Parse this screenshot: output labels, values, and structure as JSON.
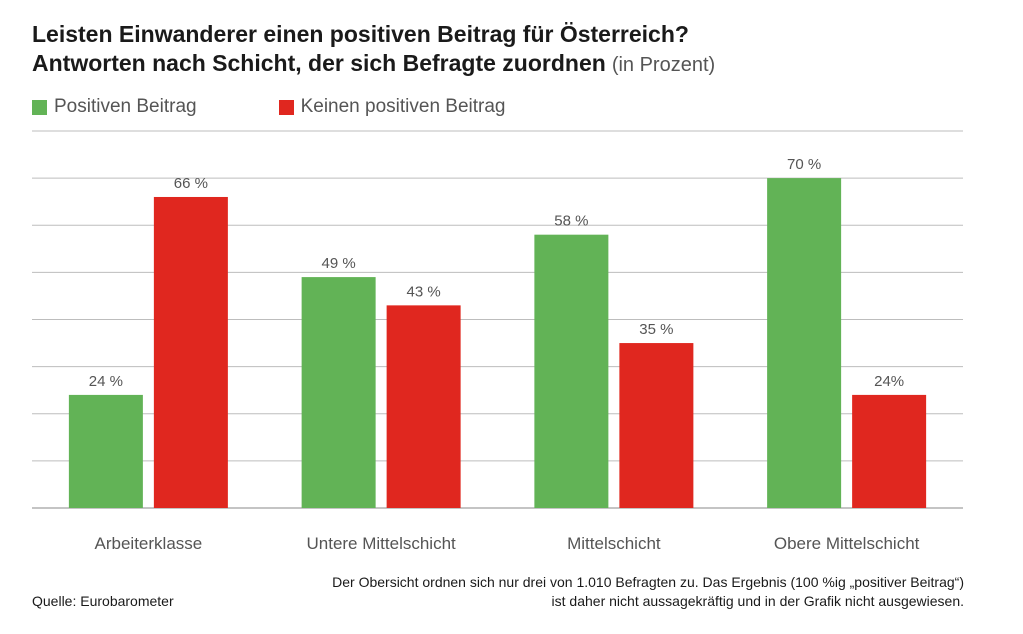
{
  "title": {
    "line1": "Leisten Einwanderer einen positiven Beitrag für Österreich?",
    "line2": "Antworten nach Schicht, der sich Befragte zuordnen",
    "unit": "(in Prozent)"
  },
  "colors": {
    "positive": "#62b356",
    "negative": "#e0271f",
    "grid": "#bdbdbd",
    "label": "#555555"
  },
  "chart_data": {
    "type": "bar",
    "categories": [
      "Arbeiterklasse",
      "Untere Mittelschicht",
      "Mittelschicht",
      "Obere Mittelschicht"
    ],
    "series": [
      {
        "name": "Positiven Beitrag",
        "values": [
          24,
          49,
          58,
          70
        ],
        "labels": [
          "24 %",
          "49 %",
          "58 %",
          "70 %"
        ]
      },
      {
        "name": "Keinen positiven Beitrag",
        "values": [
          66,
          43,
          35,
          24
        ],
        "labels": [
          "66 %",
          "43 %",
          "35 %",
          "24%"
        ]
      }
    ],
    "ylim": [
      0,
      80
    ],
    "ytick_step": 10,
    "grid": true,
    "legend_position": "top-left"
  },
  "source": "Quelle: Eurobarometer",
  "footnote": "Der Obersicht ordnen sich nur drei von 1.010 Befragten zu. Das Ergebnis (100 %ig „positiver Beitrag“) ist daher nicht aussagekräftig und in der Grafik nicht ausgewiesen."
}
